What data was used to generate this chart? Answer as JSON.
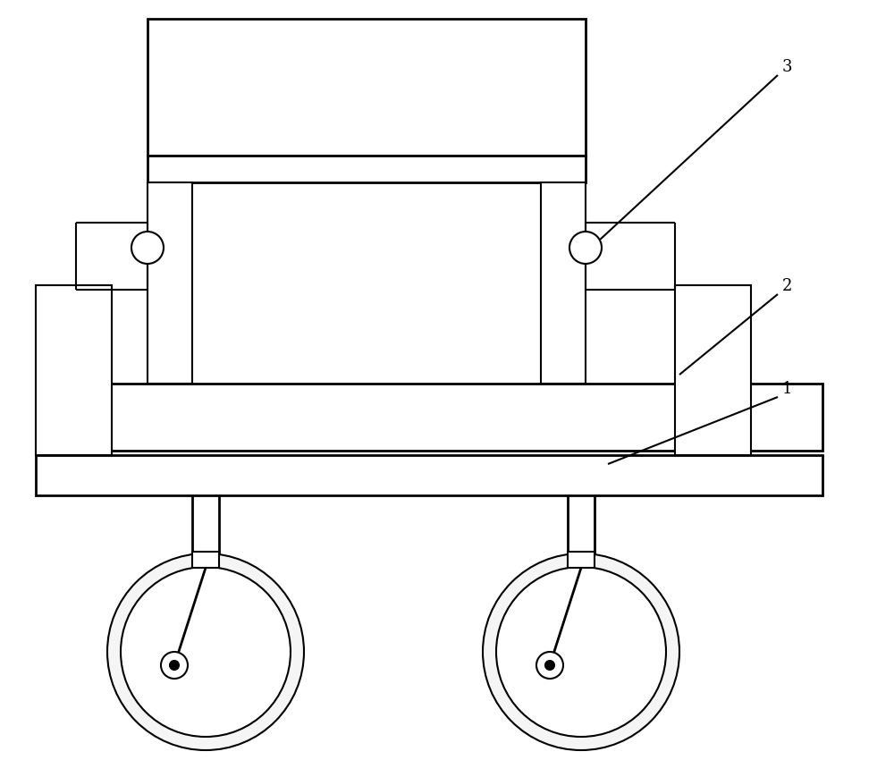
{
  "bg_color": "#ffffff",
  "line_color": "#000000",
  "lw": 1.5,
  "lw_thick": 2.0,
  "label_fontsize": 13,
  "fig_w": 10.0,
  "fig_h": 8.7
}
